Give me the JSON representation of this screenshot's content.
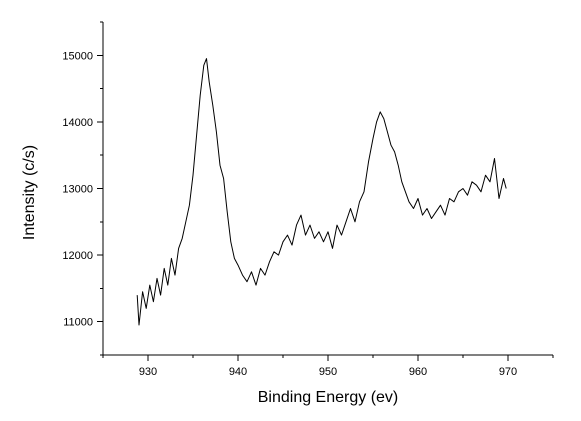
{
  "chart_data": {
    "type": "line",
    "xlabel": "Binding Energy (ev)",
    "ylabel": "Intensity (c/s)",
    "xlim": [
      925,
      975
    ],
    "ylim": [
      10500,
      15500
    ],
    "x_ticks": [
      930,
      940,
      950,
      960,
      970
    ],
    "y_ticks": [
      11000,
      12000,
      13000,
      14000,
      15000
    ],
    "x_minor_step": 5,
    "y_minor_step": 500,
    "grid": false,
    "legend": "none",
    "line_color": "#000000",
    "series": [
      {
        "x": [
          928.8,
          929.0,
          929.4,
          929.8,
          930.2,
          930.6,
          931.0,
          931.4,
          931.8,
          932.2,
          932.6,
          933.0,
          933.4,
          933.8,
          934.2,
          934.6,
          935.0,
          935.4,
          935.8,
          936.2,
          936.5,
          936.8,
          937.2,
          937.6,
          938.0,
          938.4,
          938.8,
          939.2,
          939.6,
          940.0,
          940.5,
          941.0,
          941.5,
          942.0,
          942.5,
          943.0,
          943.5,
          944.0,
          944.5,
          945.0,
          945.5,
          946.0,
          946.5,
          947.0,
          947.5,
          948.0,
          948.5,
          949.0,
          949.5,
          950.0,
          950.5,
          951.0,
          951.5,
          952.0,
          952.5,
          953.0,
          953.5,
          954.0,
          954.5,
          955.0,
          955.4,
          955.8,
          956.2,
          956.6,
          957.0,
          957.4,
          957.8,
          958.2,
          958.6,
          959.0,
          959.5,
          960.0,
          960.5,
          961.0,
          961.5,
          962.0,
          962.5,
          963.0,
          963.5,
          964.0,
          964.5,
          965.0,
          965.5,
          966.0,
          966.5,
          967.0,
          967.5,
          968.0,
          968.5,
          969.0,
          969.5,
          969.8
        ],
        "y": [
          11400,
          10950,
          11450,
          11200,
          11550,
          11300,
          11650,
          11400,
          11800,
          11550,
          11950,
          11700,
          12100,
          12250,
          12500,
          12750,
          13200,
          13800,
          14400,
          14850,
          14950,
          14600,
          14250,
          13850,
          13350,
          13150,
          12650,
          12200,
          11950,
          11850,
          11700,
          11600,
          11750,
          11550,
          11800,
          11700,
          11900,
          12050,
          12000,
          12200,
          12300,
          12150,
          12450,
          12600,
          12300,
          12450,
          12250,
          12350,
          12200,
          12350,
          12100,
          12450,
          12300,
          12500,
          12700,
          12500,
          12800,
          12950,
          13400,
          13750,
          14000,
          14150,
          14050,
          13850,
          13650,
          13550,
          13350,
          13100,
          12950,
          12800,
          12700,
          12850,
          12600,
          12700,
          12550,
          12650,
          12750,
          12600,
          12850,
          12800,
          12950,
          13000,
          12900,
          13100,
          13050,
          12950,
          13200,
          13100,
          13450,
          12850,
          13150,
          13000
        ]
      }
    ]
  }
}
